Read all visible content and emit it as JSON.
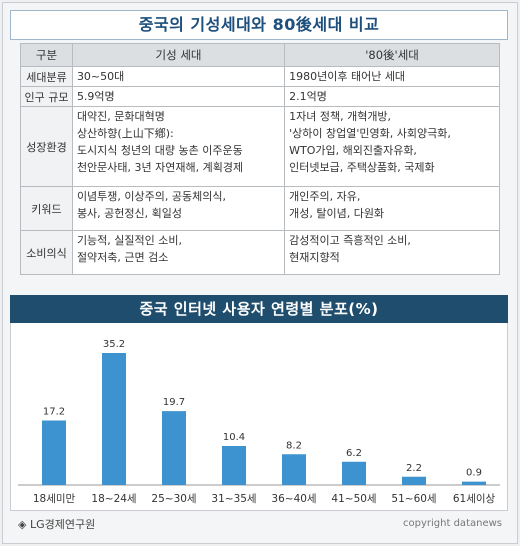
{
  "table": {
    "title": "중국의 기성세대와 80後세대 비교",
    "headers": [
      "구분",
      "기성 세대",
      "'80後'세대"
    ],
    "rows": [
      {
        "label": "세대분류",
        "a": [
          "30~50대"
        ],
        "b": [
          "1980년이후 태어난 세대"
        ]
      },
      {
        "label": "인구 규모",
        "a": [
          "5.9억명"
        ],
        "b": [
          "2.1억명"
        ]
      },
      {
        "label": "성장환경",
        "a": [
          "대약진, 문화대혁명",
          "상산하향(上山下鄕):",
          "도시지식 청년의 대량 농촌 이주운동",
          "천안문사태, 3년 자연재해, 계획경제"
        ],
        "b": [
          "1자녀 정책, 개혁개방,",
          "'상하이 창업열'민영화, 사회양극화,",
          "WTO가입, 해외진출자유화,",
          "인터넷보급, 주택상품화, 국제화"
        ]
      },
      {
        "label": "키워드",
        "a": [
          "이념투쟁, 이상주의, 공동체의식,",
          "봉사, 공헌정신, 획일성"
        ],
        "b": [
          "개인주의, 자유,",
          "개성, 탈이념, 다원화"
        ]
      },
      {
        "label": "소비의식",
        "a": [
          "기능적, 실질적인 소비,",
          "절약저축, 근면 검소"
        ],
        "b": [
          "감성적이고 즉흥적인 소비,",
          "현재지향적"
        ]
      }
    ]
  },
  "chart_data": {
    "type": "bar",
    "title": "중국 인터넷 사용자 연령별 분포(%)",
    "categories": [
      "18세미만",
      "18~24세",
      "25~30세",
      "31~35세",
      "36~40세",
      "41~50세",
      "51~60세",
      "61세이상"
    ],
    "values": [
      17.2,
      35.2,
      19.7,
      10.4,
      8.2,
      6.2,
      2.2,
      0.9
    ],
    "value_labels": [
      "17.2",
      "35.2",
      "19.7",
      "10.4",
      "8.2",
      "6.2",
      "2.2",
      "0.9"
    ],
    "ylim": [
      0,
      40
    ],
    "grid": false,
    "bar_color": "#3d93cf"
  },
  "footer": {
    "source": "◈ LG경제연구원",
    "copyright": "copyright datanews"
  }
}
